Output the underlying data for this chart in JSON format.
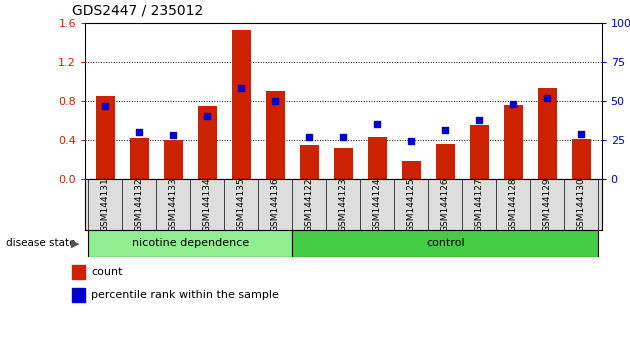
{
  "title": "GDS2447 / 235012",
  "samples": [
    "GSM144131",
    "GSM144132",
    "GSM144133",
    "GSM144134",
    "GSM144135",
    "GSM144136",
    "GSM144122",
    "GSM144123",
    "GSM144124",
    "GSM144125",
    "GSM144126",
    "GSM144127",
    "GSM144128",
    "GSM144129",
    "GSM144130"
  ],
  "counts": [
    0.85,
    0.42,
    0.4,
    0.75,
    1.53,
    0.9,
    0.35,
    0.32,
    0.43,
    0.18,
    0.36,
    0.55,
    0.76,
    0.93,
    0.41
  ],
  "percentiles": [
    47,
    30,
    28,
    40,
    58,
    50,
    27,
    27,
    35,
    24,
    31,
    38,
    48,
    52,
    29
  ],
  "n_nicotine": 6,
  "bar_color": "#CC2200",
  "dot_color": "#0000CC",
  "ylim_left": [
    0,
    1.6
  ],
  "ylim_right": [
    0,
    100
  ],
  "yticks_left": [
    0,
    0.4,
    0.8,
    1.2,
    1.6
  ],
  "yticks_right": [
    0,
    25,
    50,
    75,
    100
  ],
  "nicotine_color": "#90EE90",
  "control_color": "#44CC44",
  "ticklabel_bg": "#C8C8C8",
  "plot_bg": "#FFFFFF"
}
